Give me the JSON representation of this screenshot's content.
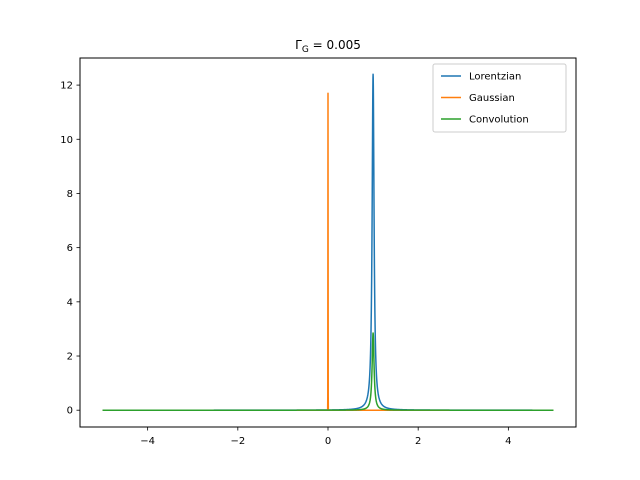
{
  "chart_data": {
    "type": "line",
    "title": "Γ_G = 0.005",
    "title_main": "Γ",
    "title_sub": "G",
    "title_rest": " = 0.005",
    "xlabel": "",
    "ylabel": "",
    "xlim": [
      -5.5,
      5.5
    ],
    "ylim": [
      -0.62,
      13.0
    ],
    "xticks": [
      -4,
      -2,
      0,
      2,
      4
    ],
    "xtick_labels": [
      "−4",
      "−2",
      "0",
      "2",
      "4"
    ],
    "yticks": [
      0,
      2,
      4,
      6,
      8,
      10,
      12
    ],
    "ytick_labels": [
      "0",
      "2",
      "4",
      "6",
      "8",
      "10",
      "12"
    ],
    "grid": false,
    "legend_position": "top-right",
    "series": [
      {
        "name": "Lorentzian",
        "color": "#1f77b4",
        "model": "lorentzian",
        "center": 1.0,
        "peak": 12.4,
        "hwhm": 0.0256,
        "x_range": [
          -5,
          5
        ]
      },
      {
        "name": "Gaussian",
        "color": "#ff7f0e",
        "model": "gaussian",
        "center": 0.0,
        "peak": 11.7,
        "sigma": 0.002,
        "x_range": [
          -5,
          5
        ]
      },
      {
        "name": "Convolution",
        "color": "#2ca02c",
        "model": "lorentzian",
        "center": 1.0,
        "peak": 2.85,
        "hwhm": 0.0256,
        "x_range": [
          -5,
          5
        ]
      }
    ]
  }
}
